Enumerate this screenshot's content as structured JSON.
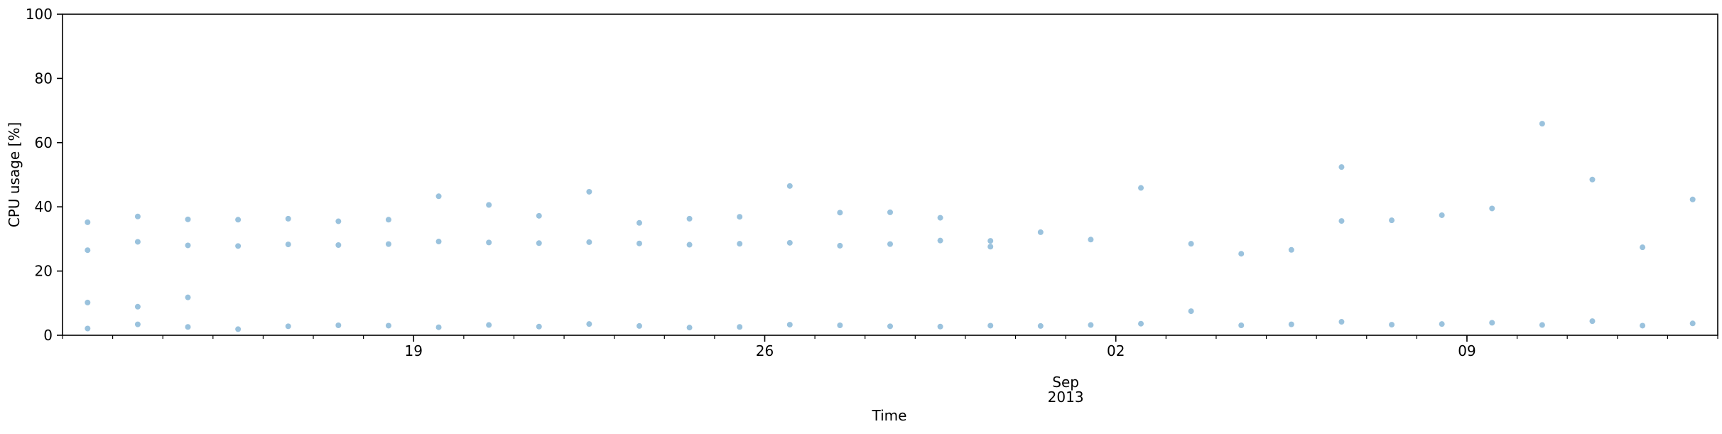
{
  "chart_data": {
    "type": "scatter",
    "title": "",
    "xlabel": "Time",
    "ylabel": "CPU usage [%]",
    "x_range": [
      "2013-08-12",
      "2013-09-14"
    ],
    "ylim": [
      0,
      100
    ],
    "y_ticks": [
      0,
      20,
      40,
      60,
      80,
      100
    ],
    "x_major_ticks": [
      {
        "date": "2013-08-19",
        "label": "19",
        "sublabel": ""
      },
      {
        "date": "2013-08-26",
        "label": "26",
        "sublabel": ""
      },
      {
        "date": "2013-09-01",
        "label": "Sep",
        "sublabel": "2013"
      },
      {
        "date": "2013-09-02",
        "label": "02",
        "sublabel": ""
      },
      {
        "date": "2013-09-09",
        "label": "09",
        "sublabel": ""
      }
    ],
    "grid": false,
    "legend": "none",
    "marker_color": "#1f77b4",
    "marker_alpha": 0.45,
    "series": [
      {
        "name": "",
        "points": [
          {
            "x": "2013-08-12",
            "y": 2.1
          },
          {
            "x": "2013-08-12",
            "y": 26.5
          },
          {
            "x": "2013-08-12",
            "y": 35.2
          },
          {
            "x": "2013-08-12",
            "y": 10.2
          },
          {
            "x": "2013-08-13",
            "y": 3.4
          },
          {
            "x": "2013-08-13",
            "y": 29.1
          },
          {
            "x": "2013-08-13",
            "y": 37.0
          },
          {
            "x": "2013-08-13",
            "y": 8.9
          },
          {
            "x": "2013-08-14",
            "y": 2.6
          },
          {
            "x": "2013-08-14",
            "y": 28.0
          },
          {
            "x": "2013-08-14",
            "y": 36.1
          },
          {
            "x": "2013-08-14",
            "y": 11.8
          },
          {
            "x": "2013-08-15",
            "y": 1.9
          },
          {
            "x": "2013-08-15",
            "y": 27.8
          },
          {
            "x": "2013-08-15",
            "y": 36.0
          },
          {
            "x": "2013-08-16",
            "y": 2.8
          },
          {
            "x": "2013-08-16",
            "y": 28.3
          },
          {
            "x": "2013-08-16",
            "y": 36.3
          },
          {
            "x": "2013-08-17",
            "y": 3.1
          },
          {
            "x": "2013-08-17",
            "y": 28.1
          },
          {
            "x": "2013-08-17",
            "y": 35.5
          },
          {
            "x": "2013-08-18",
            "y": 3.0
          },
          {
            "x": "2013-08-18",
            "y": 28.4
          },
          {
            "x": "2013-08-18",
            "y": 36.0
          },
          {
            "x": "2013-08-19",
            "y": 2.5
          },
          {
            "x": "2013-08-19",
            "y": 29.2
          },
          {
            "x": "2013-08-19",
            "y": 43.3
          },
          {
            "x": "2013-08-20",
            "y": 3.2
          },
          {
            "x": "2013-08-20",
            "y": 28.9
          },
          {
            "x": "2013-08-20",
            "y": 40.6
          },
          {
            "x": "2013-08-21",
            "y": 2.7
          },
          {
            "x": "2013-08-21",
            "y": 28.7
          },
          {
            "x": "2013-08-21",
            "y": 37.2
          },
          {
            "x": "2013-08-22",
            "y": 3.5
          },
          {
            "x": "2013-08-22",
            "y": 29.0
          },
          {
            "x": "2013-08-22",
            "y": 44.7
          },
          {
            "x": "2013-08-23",
            "y": 2.9
          },
          {
            "x": "2013-08-23",
            "y": 28.6
          },
          {
            "x": "2013-08-23",
            "y": 35.0
          },
          {
            "x": "2013-08-24",
            "y": 2.4
          },
          {
            "x": "2013-08-24",
            "y": 28.2
          },
          {
            "x": "2013-08-24",
            "y": 36.3
          },
          {
            "x": "2013-08-25",
            "y": 2.6
          },
          {
            "x": "2013-08-25",
            "y": 28.5
          },
          {
            "x": "2013-08-25",
            "y": 36.9
          },
          {
            "x": "2013-08-26",
            "y": 3.3
          },
          {
            "x": "2013-08-26",
            "y": 28.8
          },
          {
            "x": "2013-08-26",
            "y": 46.5
          },
          {
            "x": "2013-08-27",
            "y": 3.1
          },
          {
            "x": "2013-08-27",
            "y": 27.9
          },
          {
            "x": "2013-08-27",
            "y": 38.2
          },
          {
            "x": "2013-08-28",
            "y": 2.8
          },
          {
            "x": "2013-08-28",
            "y": 28.4
          },
          {
            "x": "2013-08-28",
            "y": 38.3
          },
          {
            "x": "2013-08-29",
            "y": 2.7
          },
          {
            "x": "2013-08-29",
            "y": 29.5
          },
          {
            "x": "2013-08-29",
            "y": 36.6
          },
          {
            "x": "2013-08-30",
            "y": 3.0
          },
          {
            "x": "2013-08-30",
            "y": 27.6
          },
          {
            "x": "2013-08-30",
            "y": 29.4
          },
          {
            "x": "2013-08-31",
            "y": 2.9
          },
          {
            "x": "2013-08-31",
            "y": 32.1
          },
          {
            "x": "2013-09-01",
            "y": 3.2
          },
          {
            "x": "2013-09-01",
            "y": 29.8
          },
          {
            "x": "2013-09-02",
            "y": 3.6
          },
          {
            "x": "2013-09-02",
            "y": 45.9
          },
          {
            "x": "2013-09-03",
            "y": 7.5
          },
          {
            "x": "2013-09-03",
            "y": 28.5
          },
          {
            "x": "2013-09-04",
            "y": 3.1
          },
          {
            "x": "2013-09-04",
            "y": 25.4
          },
          {
            "x": "2013-09-05",
            "y": 3.4
          },
          {
            "x": "2013-09-05",
            "y": 26.6
          },
          {
            "x": "2013-09-06",
            "y": 4.2
          },
          {
            "x": "2013-09-06",
            "y": 35.6
          },
          {
            "x": "2013-09-06",
            "y": 52.4
          },
          {
            "x": "2013-09-07",
            "y": 3.3
          },
          {
            "x": "2013-09-07",
            "y": 35.8
          },
          {
            "x": "2013-09-08",
            "y": 3.5
          },
          {
            "x": "2013-09-08",
            "y": 37.4
          },
          {
            "x": "2013-09-09",
            "y": 3.9
          },
          {
            "x": "2013-09-09",
            "y": 39.5
          },
          {
            "x": "2013-09-10",
            "y": 3.2
          },
          {
            "x": "2013-09-10",
            "y": 65.9
          },
          {
            "x": "2013-09-11",
            "y": 4.4
          },
          {
            "x": "2013-09-11",
            "y": 48.5
          },
          {
            "x": "2013-09-12",
            "y": 3.0
          },
          {
            "x": "2013-09-12",
            "y": 27.4
          },
          {
            "x": "2013-09-13",
            "y": 3.7
          },
          {
            "x": "2013-09-13",
            "y": 42.3
          }
        ]
      }
    ]
  }
}
